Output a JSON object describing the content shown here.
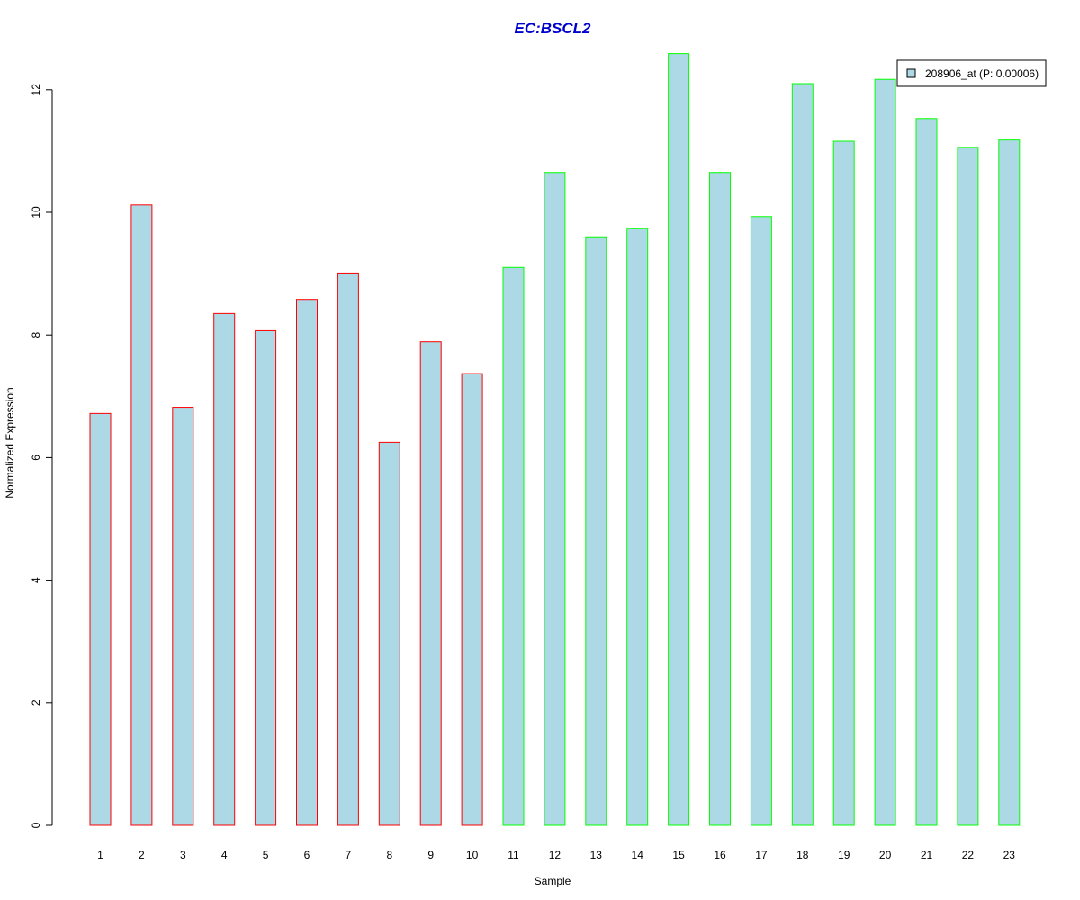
{
  "chart_data": {
    "type": "bar",
    "title": "EC:BSCL2",
    "xlabel": "Sample",
    "ylabel": "Normalized Expression",
    "categories": [
      "1",
      "2",
      "3",
      "4",
      "5",
      "6",
      "7",
      "8",
      "9",
      "10",
      "11",
      "12",
      "13",
      "14",
      "15",
      "16",
      "17",
      "18",
      "19",
      "20",
      "21",
      "22",
      "23"
    ],
    "series": [
      {
        "name": "208906_at (P: 0.00006)",
        "values": [
          6.72,
          10.12,
          6.82,
          8.35,
          8.07,
          8.58,
          9.01,
          6.25,
          7.89,
          7.37,
          9.1,
          10.65,
          9.6,
          9.74,
          12.59,
          10.65,
          9.93,
          12.1,
          11.16,
          12.17,
          11.53,
          11.06,
          11.18
        ],
        "groups": [
          "a",
          "a",
          "a",
          "a",
          "a",
          "a",
          "a",
          "a",
          "a",
          "a",
          "b",
          "b",
          "b",
          "b",
          "b",
          "b",
          "b",
          "b",
          "b",
          "b",
          "b",
          "b",
          "b"
        ]
      }
    ],
    "yticks": [
      0,
      2,
      4,
      6,
      8,
      10,
      12
    ],
    "ylim": [
      0,
      12.6
    ],
    "grid": false,
    "legend_position": "top-right",
    "colors": {
      "fill": "#ADD8E6",
      "border_a": "#FF0000",
      "border_b": "#00FF00",
      "title": "#0000CD",
      "axis": "#000000"
    }
  }
}
